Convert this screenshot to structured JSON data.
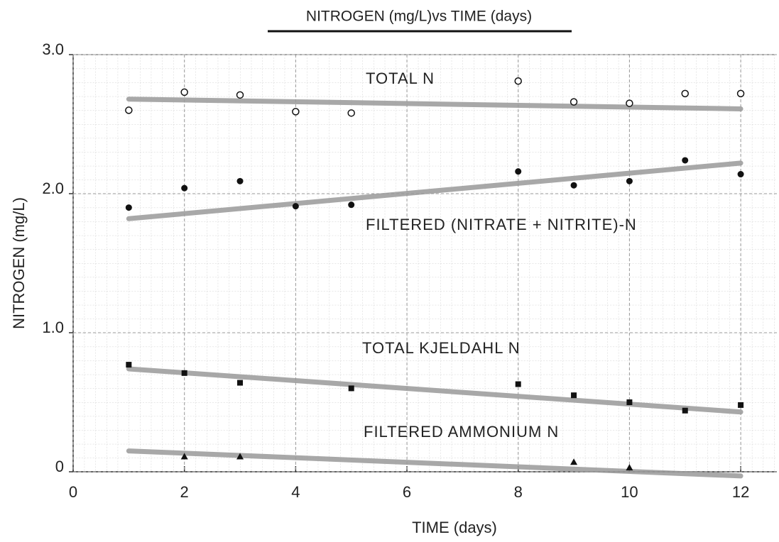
{
  "chart_data": {
    "type": "scatter",
    "title": "NITROGEN (mg/L)vs TIME (days)",
    "x_label": "TIME (days)",
    "y_label": "NITROGEN (mg/L)",
    "x": [
      1,
      2,
      3,
      4,
      5,
      8,
      9,
      10,
      11,
      12
    ],
    "trend_x": [
      1,
      12
    ],
    "trend_color": "#9a9a9a",
    "series": [
      {
        "name": "TOTAL N",
        "color": "#111111",
        "marker": "open-circle",
        "values": [
          2.6,
          2.73,
          2.71,
          2.59,
          2.58,
          2.81,
          2.66,
          2.65,
          2.72,
          2.72
        ],
        "trend": [
          2.68,
          2.61
        ]
      },
      {
        "name": "FILTERED (NITRATE + NITRITE)-N",
        "color": "#111111",
        "marker": "filled-circle",
        "values": [
          1.9,
          2.04,
          2.09,
          1.91,
          1.92,
          2.16,
          2.06,
          2.09,
          2.24,
          2.14
        ],
        "trend": [
          1.82,
          2.22
        ]
      },
      {
        "name": "TOTAL KJELDAHL N",
        "color": "#111111",
        "marker": "square",
        "values": [
          0.77,
          0.71,
          0.64,
          null,
          0.6,
          0.63,
          0.55,
          0.5,
          0.44,
          0.48
        ],
        "trend": [
          0.74,
          0.43
        ]
      },
      {
        "name": "FILTERED AMMONIUM N",
        "color": "#111111",
        "marker": "triangle",
        "values": [
          null,
          0.11,
          0.11,
          null,
          null,
          null,
          0.07,
          0.03,
          null,
          null
        ],
        "trend": [
          0.15,
          -0.03
        ]
      }
    ],
    "xlim": [
      0,
      12.65
    ],
    "ylim": [
      0,
      3.0
    ],
    "xticks": [
      0,
      2,
      4,
      6,
      8,
      10,
      12
    ],
    "yticks": [
      0,
      {
        "value": 1.0,
        "label": "1.0"
      },
      {
        "value": 2.0,
        "label": "2.0"
      },
      {
        "value": 3.0,
        "label": "3.0"
      }
    ],
    "grid": true
  }
}
